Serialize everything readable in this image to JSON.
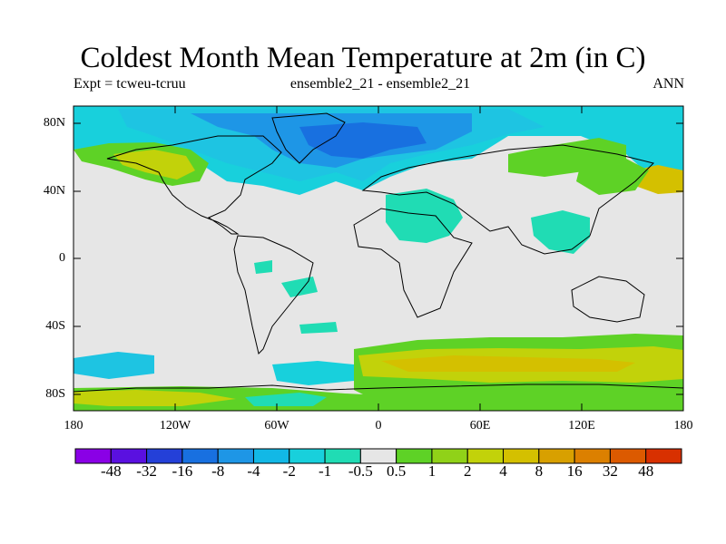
{
  "title": "Coldest Month Mean Temperature at 2m (in C)",
  "subtitle_left": "Expt = tcweu-tcruu",
  "subtitle_center": "ensemble2_21 - ensemble2_21",
  "subtitle_right": "ANN",
  "y_ticks": [
    "80N",
    "40N",
    "0",
    "40S",
    "80S"
  ],
  "x_ticks": [
    "180",
    "120W",
    "60W",
    "0",
    "60E",
    "120E",
    "180"
  ],
  "colorbar": {
    "colors": [
      "#8a00e6",
      "#5a10e0",
      "#2440d8",
      "#1870e0",
      "#1e96e6",
      "#12b8e6",
      "#18d0dc",
      "#20dcb4",
      "#e6e6e6",
      "#5ed226",
      "#90d218",
      "#c2d20a",
      "#d4c000",
      "#d8a000",
      "#dc8000",
      "#dc5a00",
      "#d83000"
    ],
    "labels": [
      "-48",
      "-32",
      "-16",
      "-8",
      "-4",
      "-2",
      "-1",
      "-0.5",
      "0.5",
      "1",
      "2",
      "4",
      "8",
      "16",
      "32",
      "48"
    ]
  },
  "colors": {
    "background": "#e6e6e6",
    "coast": "#000000"
  }
}
